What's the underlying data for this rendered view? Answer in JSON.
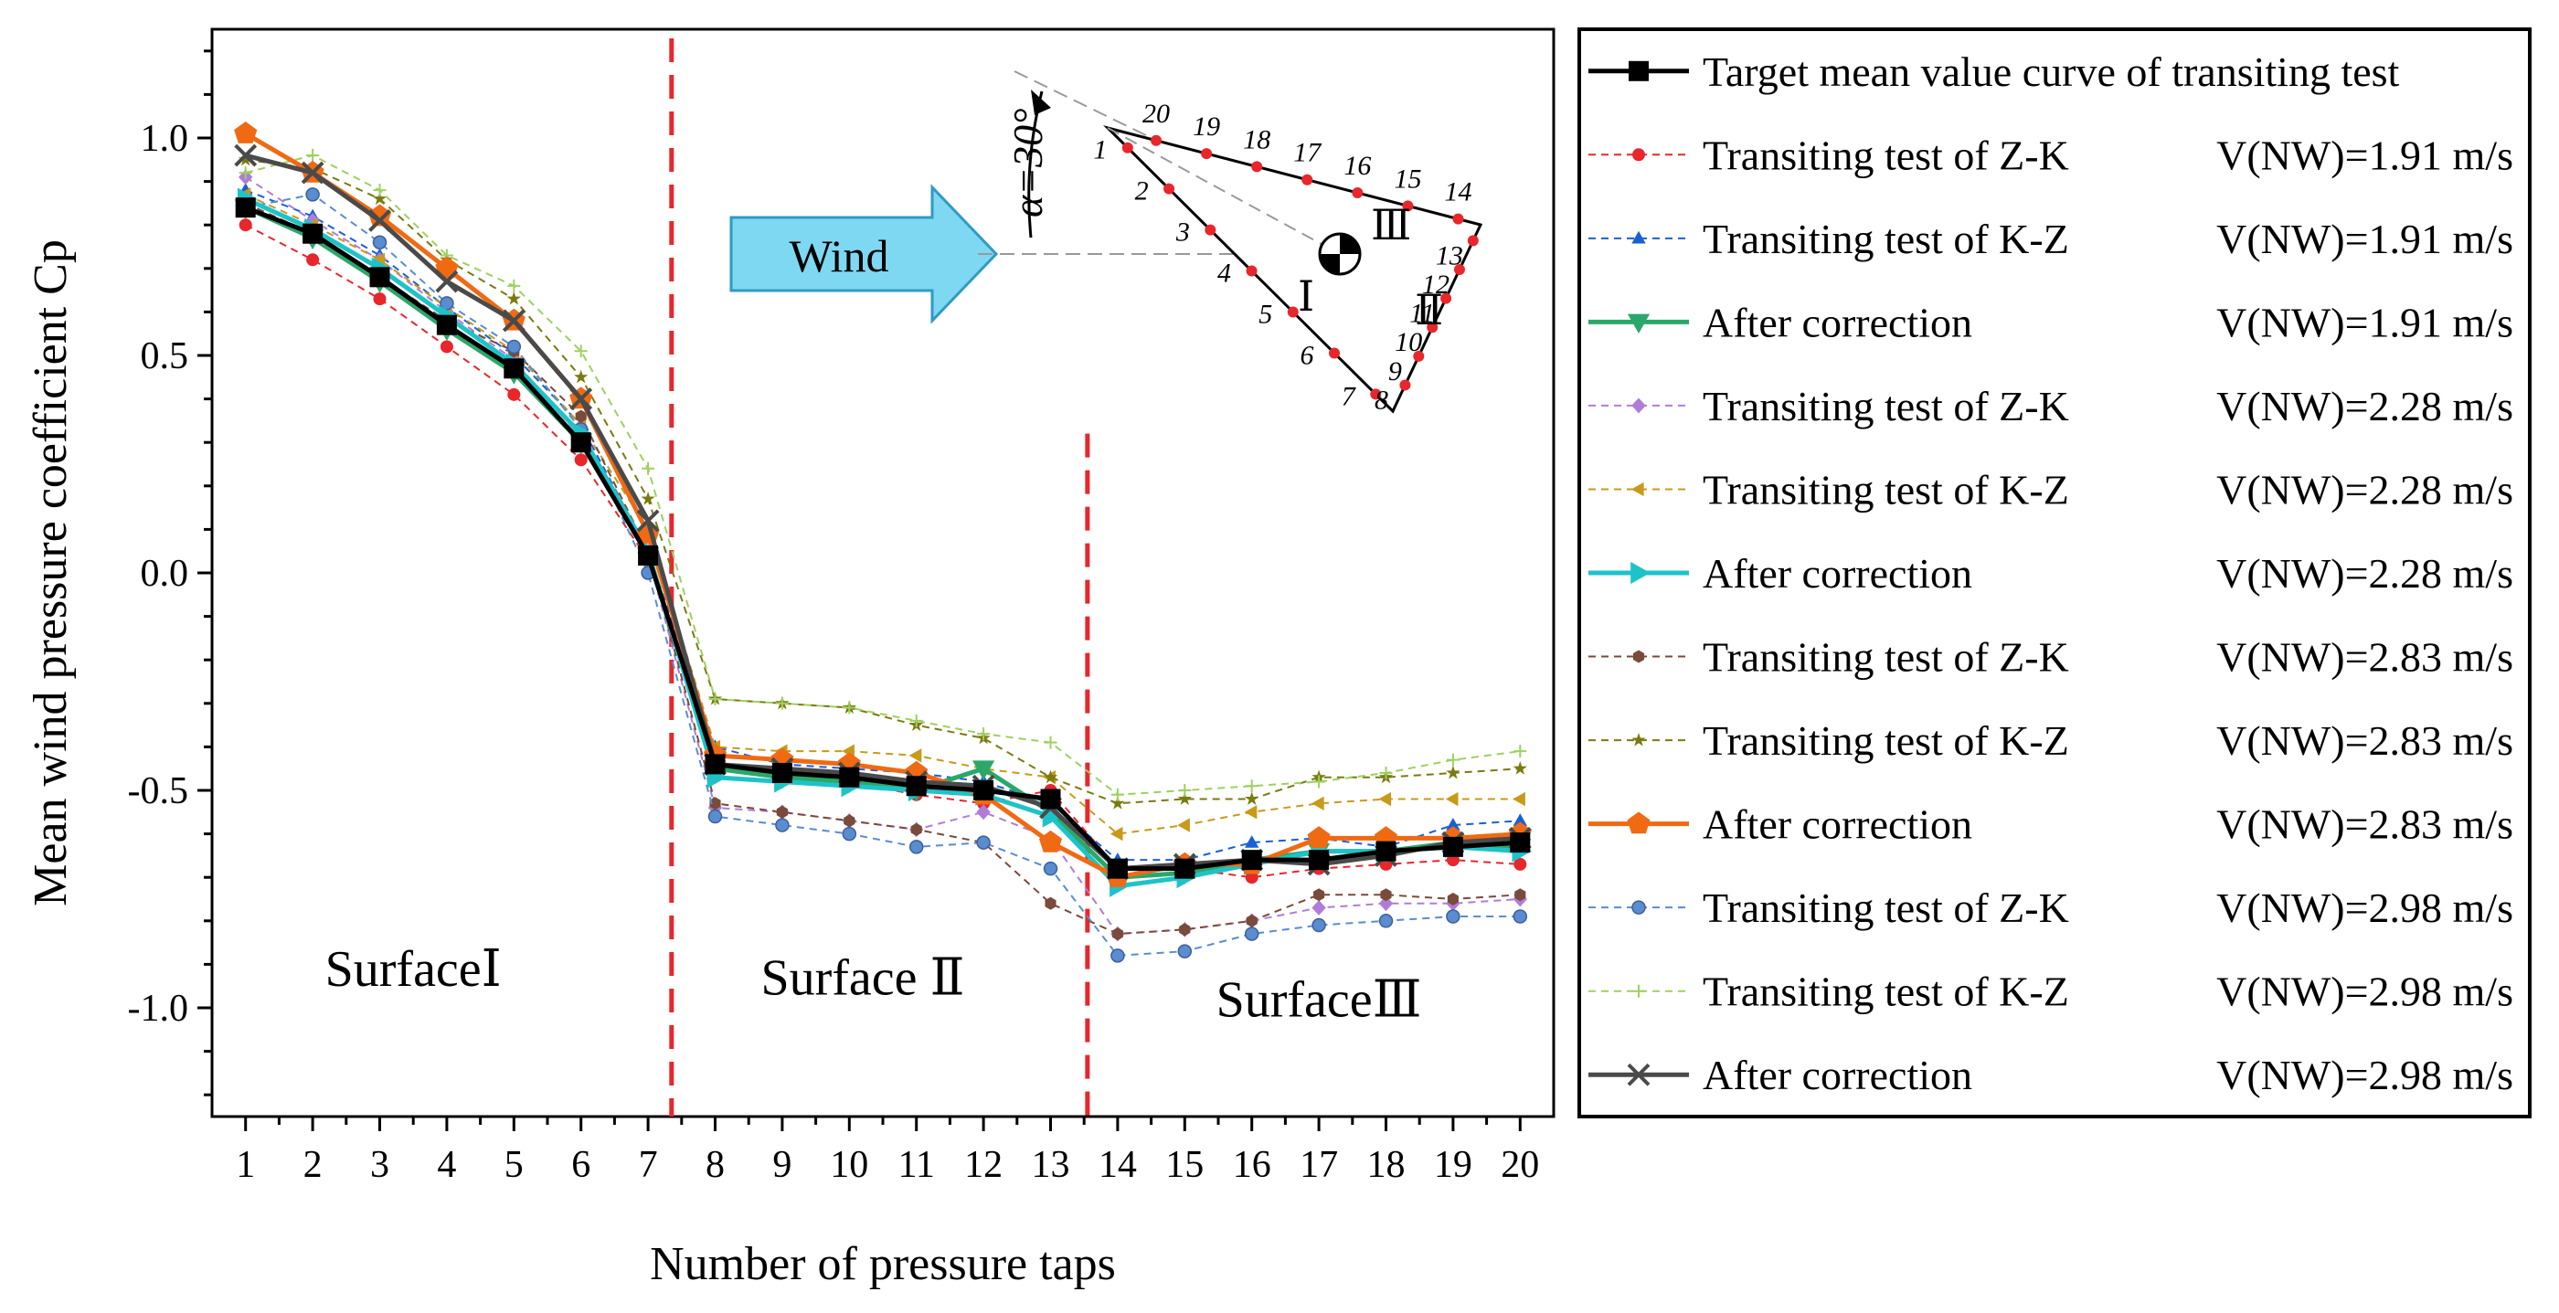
{
  "chart_data": {
    "type": "line",
    "title": "",
    "xlabel": "Number of pressure taps",
    "ylabel": "Mean wind pressure coefficient Cp",
    "x": [
      1,
      2,
      3,
      4,
      5,
      6,
      7,
      8,
      9,
      10,
      11,
      12,
      13,
      14,
      15,
      16,
      17,
      18,
      19,
      20
    ],
    "xlim": [
      0.5,
      20.5
    ],
    "ylim": [
      -1.25,
      1.25
    ],
    "yticks": [
      "1.0",
      "0.5",
      "0.0",
      "-0.5",
      "-1.0"
    ],
    "ytick_values": [
      1.0,
      0.5,
      0.0,
      -0.5,
      -1.0
    ],
    "xticks": [
      "1",
      "2",
      "3",
      "4",
      "5",
      "6",
      "7",
      "8",
      "9",
      "10",
      "11",
      "12",
      "13",
      "14",
      "15",
      "16",
      "17",
      "18",
      "19",
      "20"
    ],
    "separators_x": [
      7.35,
      13.55
    ],
    "regions": [
      {
        "label": "SurfaceⅠ",
        "x": 3.5,
        "y": -0.95
      },
      {
        "label": "Surface Ⅱ",
        "x": 10.2,
        "y": -0.97
      },
      {
        "label": "SurfaceⅢ",
        "x": 17.0,
        "y": -1.02
      }
    ],
    "legend_placement": "right, outside",
    "series": [
      {
        "name": "Target mean value curve of transiting test",
        "speed": "",
        "color": "#000000",
        "style": "solid",
        "marker": "square",
        "values": [
          0.84,
          0.78,
          0.68,
          0.57,
          0.47,
          0.3,
          0.04,
          -0.44,
          -0.46,
          -0.47,
          -0.49,
          -0.5,
          -0.52,
          -0.68,
          -0.68,
          -0.66,
          -0.66,
          -0.64,
          -0.63,
          -0.62
        ]
      },
      {
        "name": "Transiting test of Z-K",
        "speed": "V(NW)=1.91 m/s",
        "color": "#e8262b",
        "style": "dashed",
        "marker": "circle",
        "values": [
          0.8,
          0.72,
          0.63,
          0.52,
          0.41,
          0.26,
          0.03,
          -0.45,
          -0.46,
          -0.48,
          -0.51,
          -0.53,
          -0.5,
          -0.68,
          -0.68,
          -0.7,
          -0.68,
          -0.67,
          -0.66,
          -0.67
        ]
      },
      {
        "name": "Transiting test of K-Z",
        "speed": "V(NW)=1.91 m/s",
        "color": "#1a5fd6",
        "style": "dashed",
        "marker": "triangle-up",
        "values": [
          0.88,
          0.82,
          0.73,
          0.61,
          0.5,
          0.34,
          0.05,
          -0.4,
          -0.44,
          -0.45,
          -0.46,
          -0.48,
          -0.53,
          -0.66,
          -0.66,
          -0.62,
          -0.61,
          -0.63,
          -0.58,
          -0.57
        ]
      },
      {
        "name": "After correction",
        "speed": "V(NW)=1.91 m/s",
        "color": "#2aa86a",
        "style": "solid",
        "marker": "triangle-down",
        "values": [
          0.84,
          0.77,
          0.67,
          0.56,
          0.46,
          0.3,
          0.04,
          -0.45,
          -0.47,
          -0.48,
          -0.5,
          -0.45,
          -0.55,
          -0.7,
          -0.69,
          -0.66,
          -0.64,
          -0.64,
          -0.62,
          -0.63
        ]
      },
      {
        "name": "Transiting test of Z-K",
        "speed": "V(NW)=2.28 m/s",
        "color": "#b07cd8",
        "style": "dashed",
        "marker": "diamond",
        "values": [
          0.91,
          0.81,
          0.72,
          0.6,
          0.49,
          0.31,
          0.04,
          -0.54,
          -0.55,
          -0.57,
          -0.59,
          -0.55,
          -0.61,
          -0.83,
          -0.82,
          -0.8,
          -0.77,
          -0.76,
          -0.76,
          -0.75
        ]
      },
      {
        "name": "Transiting test of K-Z",
        "speed": "V(NW)=2.28 m/s",
        "color": "#c89a1a",
        "style": "dashed",
        "marker": "triangle-left",
        "values": [
          0.87,
          0.8,
          0.72,
          0.61,
          0.51,
          0.34,
          0.1,
          -0.4,
          -0.41,
          -0.41,
          -0.42,
          -0.45,
          -0.47,
          -0.6,
          -0.58,
          -0.55,
          -0.53,
          -0.52,
          -0.52,
          -0.52
        ]
      },
      {
        "name": "After correction",
        "speed": "V(NW)=2.28 m/s",
        "color": "#1ec3c8",
        "style": "solid",
        "marker": "triangle-right",
        "values": [
          0.86,
          0.79,
          0.7,
          0.59,
          0.48,
          0.32,
          0.05,
          -0.47,
          -0.48,
          -0.49,
          -0.5,
          -0.51,
          -0.56,
          -0.72,
          -0.7,
          -0.67,
          -0.64,
          -0.64,
          -0.63,
          -0.64
        ]
      },
      {
        "name": "Transiting test of Z-K",
        "speed": "V(NW)=2.83 m/s",
        "color": "#7a4a3a",
        "style": "dashed",
        "marker": "hexagon",
        "values": [
          0.85,
          0.78,
          0.68,
          0.58,
          0.51,
          0.36,
          0.05,
          -0.53,
          -0.55,
          -0.57,
          -0.59,
          -0.62,
          -0.76,
          -0.83,
          -0.82,
          -0.8,
          -0.74,
          -0.74,
          -0.75,
          -0.74
        ]
      },
      {
        "name": "Transiting test of K-Z",
        "speed": "V(NW)=2.83 m/s",
        "color": "#7a7a10",
        "style": "dashed",
        "marker": "star",
        "values": [
          0.95,
          0.93,
          0.86,
          0.72,
          0.63,
          0.45,
          0.17,
          -0.29,
          -0.3,
          -0.31,
          -0.35,
          -0.38,
          -0.47,
          -0.53,
          -0.52,
          -0.52,
          -0.47,
          -0.47,
          -0.46,
          -0.45
        ]
      },
      {
        "name": "After correction",
        "speed": "V(NW)=2.83 m/s",
        "color": "#f06a13",
        "style": "solid",
        "marker": "pentagon",
        "values": [
          1.01,
          0.92,
          0.82,
          0.7,
          0.58,
          0.4,
          0.09,
          -0.42,
          -0.43,
          -0.44,
          -0.46,
          -0.51,
          -0.62,
          -0.7,
          -0.67,
          -0.67,
          -0.61,
          -0.61,
          -0.61,
          -0.6
        ]
      },
      {
        "name": "Transiting test of Z-K",
        "speed": "V(NW)=2.98 m/s",
        "color": "#5a8cd0",
        "style": "dashed",
        "marker": "ball",
        "values": [
          0.84,
          0.87,
          0.76,
          0.62,
          0.52,
          0.33,
          0.0,
          -0.56,
          -0.58,
          -0.6,
          -0.63,
          -0.62,
          -0.68,
          -0.88,
          -0.87,
          -0.83,
          -0.81,
          -0.8,
          -0.79,
          -0.79
        ]
      },
      {
        "name": "Transiting test of K-Z",
        "speed": "V(NW)=2.98 m/s",
        "color": "#9ed060",
        "style": "dashed",
        "marker": "plus",
        "values": [
          0.92,
          0.96,
          0.88,
          0.73,
          0.66,
          0.51,
          0.24,
          -0.29,
          -0.3,
          -0.31,
          -0.34,
          -0.37,
          -0.39,
          -0.51,
          -0.5,
          -0.49,
          -0.48,
          -0.46,
          -0.43,
          -0.41
        ]
      },
      {
        "name": "After correction",
        "speed": "V(NW)=2.98 m/s",
        "color": "#4a4a4a",
        "style": "solid",
        "marker": "cross",
        "values": [
          0.96,
          0.92,
          0.81,
          0.67,
          0.58,
          0.4,
          0.12,
          -0.44,
          -0.45,
          -0.46,
          -0.48,
          -0.49,
          -0.54,
          -0.68,
          -0.67,
          -0.66,
          -0.67,
          -0.65,
          -0.62,
          -0.61
        ]
      }
    ],
    "inset": {
      "wind_label": "Wind",
      "angle_label": "α=30°",
      "tap_labels": [
        "1",
        "2",
        "3",
        "4",
        "5",
        "6",
        "7",
        "8",
        "9",
        "10",
        "11",
        "12",
        "13",
        "14",
        "15",
        "16",
        "17",
        "18",
        "19",
        "20"
      ],
      "face_labels": [
        "Ⅰ",
        "Ⅱ",
        "Ⅲ"
      ]
    }
  }
}
